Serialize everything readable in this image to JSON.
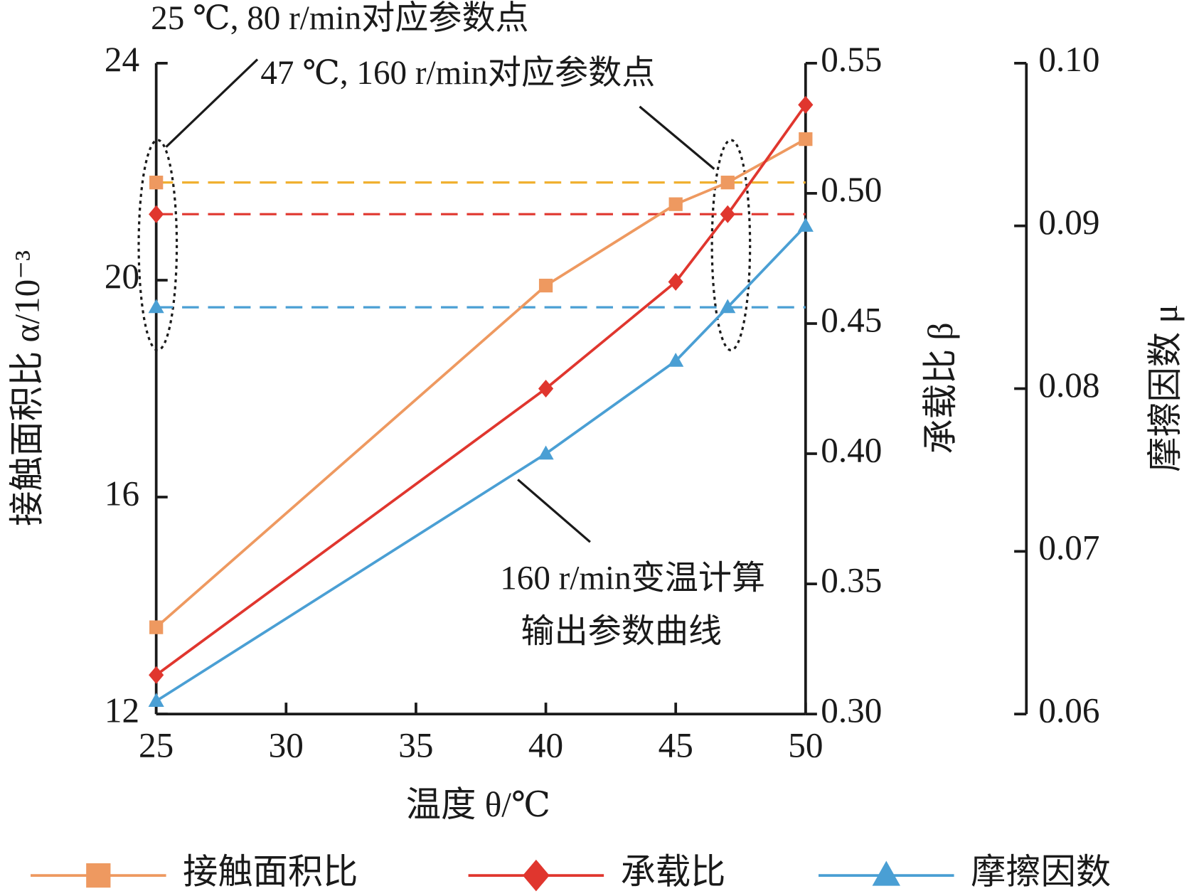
{
  "chart_data": {
    "type": "line",
    "x_label": "温度 θ/℃",
    "y_label": "接触面积比 α/10⁻³",
    "y2_label": "承载比 β",
    "y3_label": "摩擦因数 μ",
    "x": [
      25,
      40,
      45,
      47,
      50
    ],
    "xlim": [
      25,
      50
    ],
    "xticks": [
      25,
      30,
      35,
      40,
      45,
      50
    ],
    "ylim": [
      12,
      24
    ],
    "yticks": [
      12,
      16,
      20,
      24
    ],
    "y2lim": [
      0.3,
      0.55
    ],
    "y2ticks": [
      {
        "value": 0.3,
        "label": "0.30"
      },
      {
        "value": 0.35,
        "label": "0.35"
      },
      {
        "value": 0.4,
        "label": "0.40"
      },
      {
        "value": 0.45,
        "label": "0.45"
      },
      {
        "value": 0.5,
        "label": "0.50"
      },
      {
        "value": 0.55,
        "label": "0.55"
      }
    ],
    "y3lim": [
      0.06,
      0.1
    ],
    "y3ticks": [
      {
        "value": 0.06,
        "label": "0.06"
      },
      {
        "value": 0.07,
        "label": "0.07"
      },
      {
        "value": 0.08,
        "label": "0.08"
      },
      {
        "value": 0.09,
        "label": "0.09"
      },
      {
        "value": 0.1,
        "label": "0.10"
      }
    ],
    "series": [
      {
        "name": "接触面积比",
        "color": "#ee9960",
        "axis": "y",
        "marker": "square",
        "values": [
          13.6,
          19.9,
          21.4,
          21.8,
          22.6
        ]
      },
      {
        "name": "承载比",
        "color": "#e0362e",
        "axis": "y2",
        "marker": "diamond",
        "values": [
          0.315,
          0.425,
          0.466,
          0.492,
          0.534
        ]
      },
      {
        "name": "摩擦因数",
        "color": "#4a9fd4",
        "axis": "y3",
        "marker": "triangle",
        "values": [
          0.0608,
          0.076,
          0.0817,
          0.085,
          0.09
        ]
      }
    ],
    "reference_x": 25,
    "reference_lines": [
      {
        "axis": "y",
        "value": 21.8,
        "color": "#f0b030",
        "marker_color": "#ee9960",
        "marker": "square"
      },
      {
        "axis": "y2",
        "value": 0.492,
        "color": "#e0362e",
        "marker_color": "#e0362e",
        "marker": "diamond"
      },
      {
        "axis": "y3",
        "value": 0.085,
        "color": "#4a9fd4",
        "marker_color": "#4a9fd4",
        "marker": "triangle"
      }
    ],
    "annotations": [
      "25 ℃, 80 r/min对应参数点",
      "47 ℃, 160 r/min对应参数点",
      "160 r/min变温计算",
      "输出参数曲线"
    ]
  }
}
